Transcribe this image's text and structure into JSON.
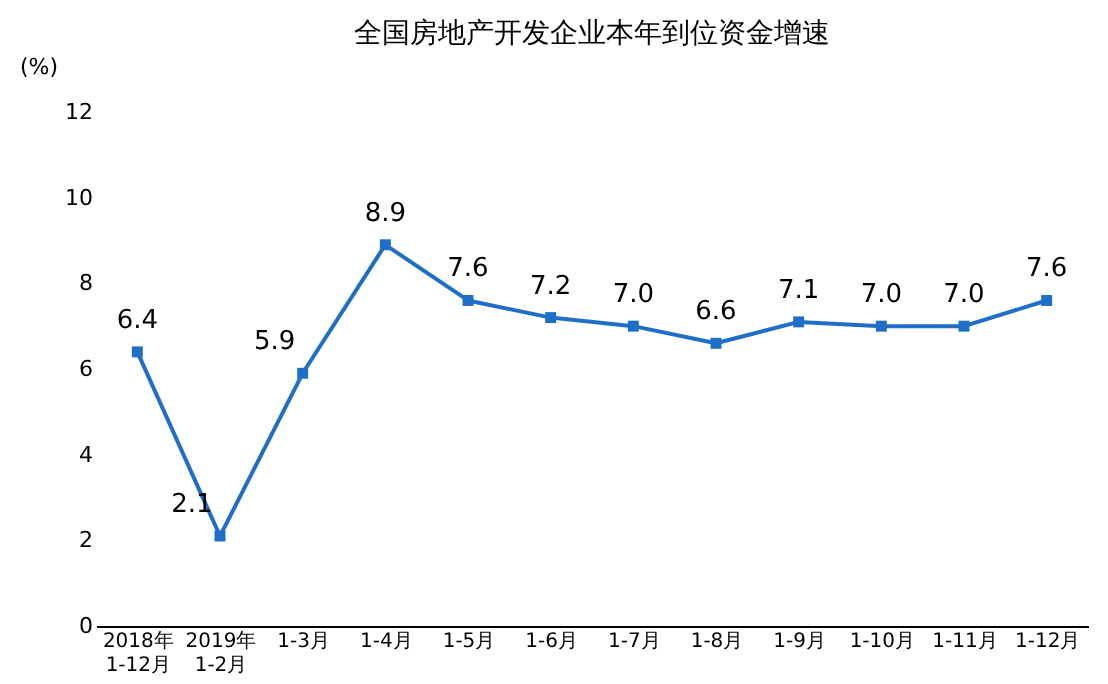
{
  "chart_data": {
    "type": "line",
    "title": "全国房地产开发企业本年到位资金增速",
    "ylabel": "(%)",
    "categories": [
      "2018年\n1-12月",
      "2019年\n1-2月",
      "1-3月",
      "1-4月",
      "1-5月",
      "1-6月",
      "1-7月",
      "1-8月",
      "1-9月",
      "1-10月",
      "1-11月",
      "1-12月"
    ],
    "series": [
      {
        "color": "#1f6fc8",
        "values": [
          6.4,
          2.1,
          5.9,
          8.9,
          7.6,
          7.2,
          7.0,
          6.6,
          7.1,
          7.0,
          7.0,
          7.6
        ],
        "value_labels": [
          "6.4",
          "2.1",
          "5.9",
          "8.9",
          "7.6",
          "7.2",
          "7.0",
          "6.6",
          "7.1",
          "7.0",
          "7.0",
          "7.6"
        ]
      }
    ],
    "ylim": [
      0,
      12
    ],
    "yticks": [
      0,
      2,
      4,
      6,
      8,
      10,
      12
    ],
    "marker": "square",
    "line_style": "solid",
    "grid": false,
    "legend": false
  }
}
